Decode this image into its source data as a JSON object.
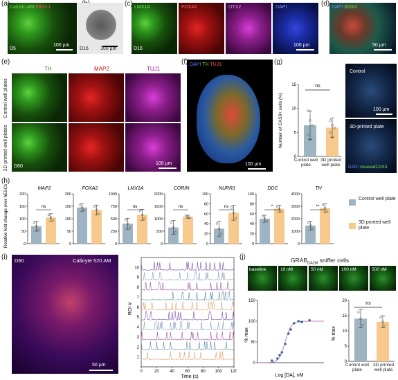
{
  "panels": {
    "a": {
      "label": "(a)",
      "stain1": "Calcein AM",
      "stain2": "EthD-1",
      "day": "D5",
      "scale": "100 µm"
    },
    "b": {
      "label": "(b)",
      "day": "D16",
      "scale": "100 µm"
    },
    "c": {
      "label": "(c)",
      "markers": [
        "LMX1A",
        "FOXA2",
        "OTX2",
        "DAPI"
      ],
      "day": "D16",
      "scale": "100 µm"
    },
    "d": {
      "label": "(d)",
      "stain1": "DAPI",
      "stain2": "SOX2",
      "scale": "50 µm"
    },
    "e": {
      "label": "(e)",
      "markers": [
        "TH",
        "MAP2",
        "TUJ1"
      ],
      "row1": "Control well plates",
      "row2": "3D printed well plates",
      "day": "D60",
      "scale": "100 µm"
    },
    "f": {
      "label": "(f)",
      "stain1": "DAPI",
      "stain2": "TH",
      "stain3": "TUJ1",
      "scale": "100 µm"
    },
    "g": {
      "label": "(g)",
      "ylabel": "Number of CAS3+ cells (%)",
      "ns": "ns",
      "cat1": "Control well plate",
      "cat2": "3D printed well plate",
      "img1": "Control",
      "img2": "3D-printed plate",
      "stain1": "DAPI",
      "stain2": "cleavedCAS3",
      "scale": "100 µm"
    },
    "h": {
      "label": "(h)",
      "ylabel": "Relative fold change over hESCs",
      "legend1": "Control well plate",
      "legend2": "3D printed well plate"
    },
    "i": {
      "label": "(i)",
      "day": "D60",
      "dye": "Calbryte 520 AM",
      "scale": "50 µm",
      "xlabel": "Time (s)",
      "ylabel": "ROI #"
    },
    "j": {
      "label": "(j)",
      "title": "GRAB",
      "title_sub": "DA2M",
      "title_rest": "sniffer cells",
      "concs": [
        "baseline",
        "10 nM",
        "50 nM",
        "100 nM",
        "500 nM"
      ],
      "xlabel": "Log [DA], nM",
      "ylabel": "% max",
      "ylabel2": "% max",
      "ns": "ns",
      "cat1": "Control well plate",
      "cat2": "3D printed well plate"
    }
  },
  "chart_data": [
    {
      "type": "bar",
      "id": "g",
      "categories": [
        "Control well plate",
        "3D printed well plate"
      ],
      "values": [
        6.5,
        6.0
      ],
      "errors": [
        3.0,
        2.0
      ],
      "ylim": [
        0,
        15
      ],
      "yticks": [
        0,
        5,
        10,
        15
      ],
      "colors": [
        "#9fb4c2",
        "#f7c98c"
      ],
      "points": [
        [
          9.5,
          7.5,
          6.5,
          4.5,
          3.5
        ],
        [
          7.5,
          6.5,
          6,
          5,
          4
        ]
      ]
    },
    {
      "type": "bar",
      "id": "h1",
      "gene": "MAP2",
      "categories": [
        "Control",
        "3D printed"
      ],
      "values": [
        70,
        105
      ],
      "errors": [
        20,
        15
      ],
      "ylim": [
        0,
        200
      ],
      "yticks": [
        0,
        50,
        100,
        150,
        200
      ],
      "sig": "ns"
    },
    {
      "type": "bar",
      "id": "h2",
      "gene": "FOXA2",
      "categories": [
        "Control",
        "3D printed"
      ],
      "values": [
        145,
        135
      ],
      "errors": [
        15,
        20
      ],
      "ylim": [
        0,
        200
      ],
      "yticks": [
        0,
        50,
        100,
        150,
        200
      ],
      "sig": ""
    },
    {
      "type": "bar",
      "id": "h3",
      "gene": "LMX1A",
      "categories": [
        "Control",
        "3D printed"
      ],
      "values": [
        400,
        580
      ],
      "errors": [
        110,
        110
      ],
      "ylim": [
        0,
        1000
      ],
      "yticks": [
        0,
        250,
        500,
        750,
        1000
      ],
      "sig": "ns"
    },
    {
      "type": "bar",
      "id": "h4",
      "gene": "CORIN",
      "categories": [
        "Control",
        "3D printed"
      ],
      "values": [
        650,
        1080
      ],
      "errors": [
        280,
        60
      ],
      "ylim": [
        0,
        2000
      ],
      "yticks": [
        0,
        500,
        1000,
        1500,
        2000
      ],
      "sig": "ns"
    },
    {
      "type": "bar",
      "id": "h5",
      "gene": "NURR1",
      "categories": [
        "Control",
        "3D printed"
      ],
      "values": [
        30,
        62
      ],
      "errors": [
        15,
        15
      ],
      "ylim": [
        0,
        100
      ],
      "yticks": [
        0,
        20,
        40,
        60,
        80,
        100
      ],
      "sig": "ns"
    },
    {
      "type": "bar",
      "id": "h6",
      "gene": "DDC",
      "categories": [
        "Control",
        "3D printed"
      ],
      "values": [
        50,
        70
      ],
      "errors": [
        7,
        7
      ],
      "ylim": [
        0,
        100
      ],
      "yticks": [
        0,
        20,
        40,
        60,
        80,
        100
      ],
      "sig": "*"
    },
    {
      "type": "bar",
      "id": "h7",
      "gene": "TH",
      "categories": [
        "Control",
        "3D printed"
      ],
      "values": [
        1450,
        2850
      ],
      "errors": [
        350,
        350
      ],
      "ylim": [
        0,
        4000
      ],
      "yticks": [
        0,
        1000,
        2000,
        3000,
        4000
      ],
      "sig": "**"
    },
    {
      "type": "line",
      "id": "i",
      "xlim": [
        0,
        120
      ],
      "xticks": [
        0,
        20,
        40,
        60,
        80,
        100,
        120
      ],
      "ylim": [
        0,
        11
      ],
      "yticks": [
        1,
        2,
        3,
        4,
        5,
        6,
        7,
        8,
        9,
        10
      ],
      "xlabel": "Time (s)",
      "ylabel": "ROI #"
    },
    {
      "type": "scatter",
      "id": "j1",
      "xlabel": "Log [DA], nM",
      "ylabel": "% max",
      "xlim": [
        -1,
        5
      ],
      "ylim": [
        0,
        150
      ],
      "yticks": [
        0,
        50,
        100,
        150
      ],
      "x": [
        0.3,
        0.8,
        1.0,
        1.2,
        1.5,
        1.8,
        2.0,
        2.3,
        2.7,
        3.0,
        3.7
      ],
      "y": [
        5,
        10,
        18,
        25,
        45,
        70,
        80,
        95,
        100,
        98,
        102
      ]
    },
    {
      "type": "bar",
      "id": "j2",
      "categories": [
        "Control well plate",
        "3D printed well plate"
      ],
      "values": [
        14,
        13
      ],
      "errors": [
        3,
        2
      ],
      "ylim": [
        0,
        20
      ],
      "yticks": [
        0,
        5,
        10,
        15,
        20
      ],
      "colors": [
        "#9fb4c2",
        "#f7c98c"
      ],
      "sig": "ns"
    }
  ]
}
